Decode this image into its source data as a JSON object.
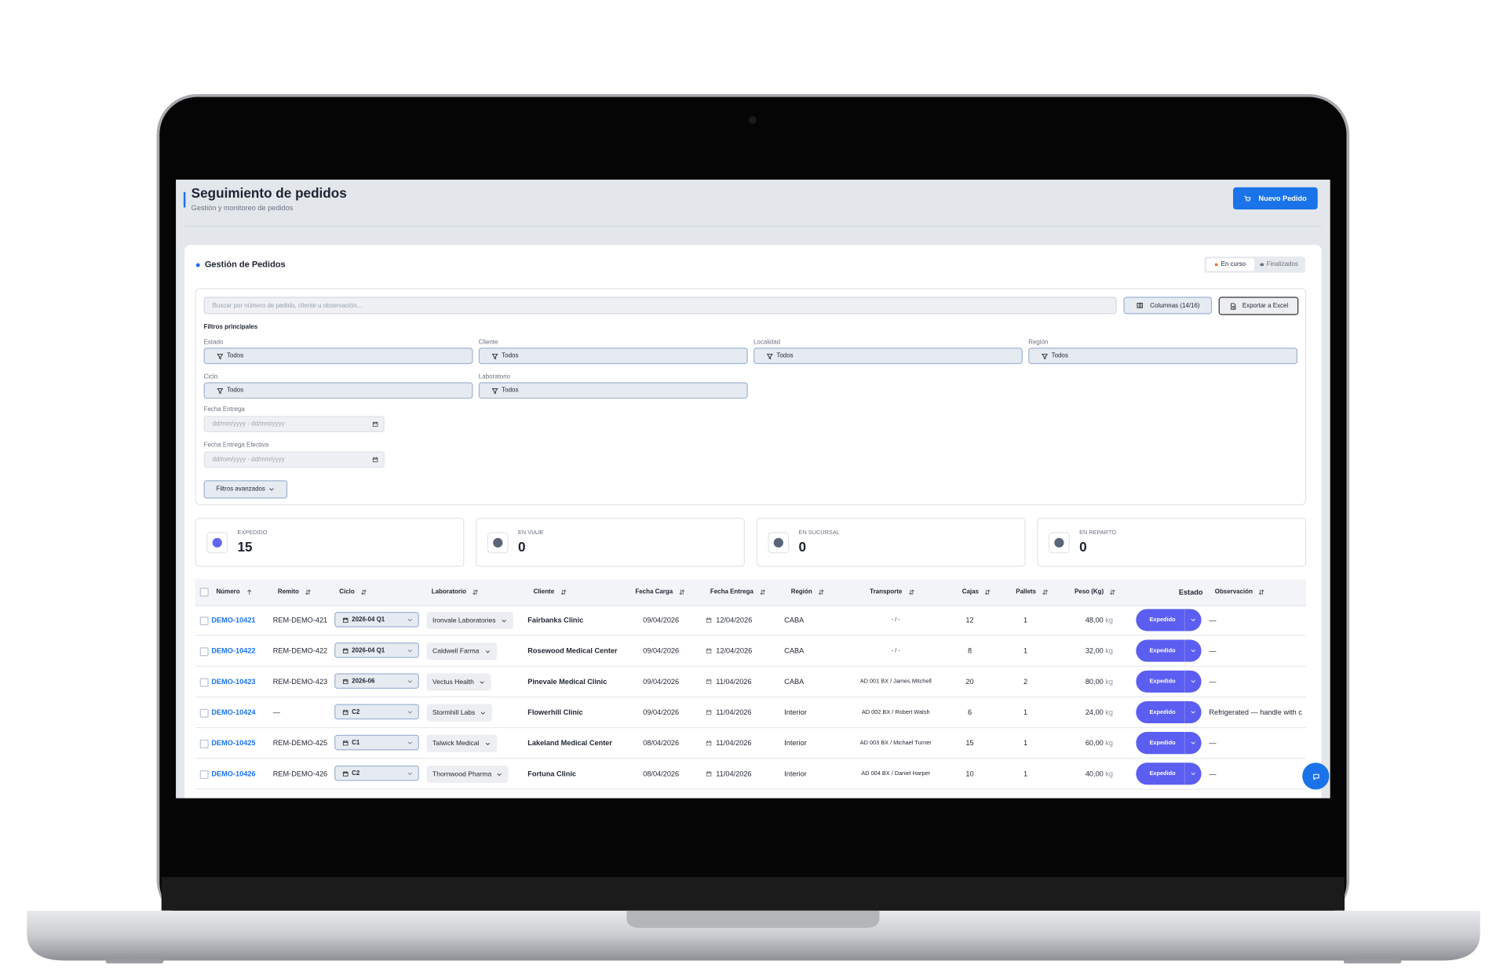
{
  "header": {
    "title": "Seguimiento de pedidos",
    "subtitle": "Gestión y monitoreo de pedidos",
    "new_button": "Nuevo Pedido"
  },
  "panel": {
    "title": "Gestión de Pedidos",
    "tabs": [
      "En curso",
      "Finalizados"
    ]
  },
  "toolbar": {
    "search_placeholder": "Buscar por número de pedido, cliente u observación...",
    "columns_button": "Columnas (14/16)",
    "export_button": "Exportar a Excel"
  },
  "filters": {
    "title": "Filtros principales",
    "selects": [
      {
        "label": "Estado",
        "value": "Todos"
      },
      {
        "label": "Cliente",
        "value": "Todos"
      },
      {
        "label": "Localidad",
        "value": "Todos"
      },
      {
        "label": "Región",
        "value": "Todos"
      },
      {
        "label": "Ciclo",
        "value": "Todos"
      },
      {
        "label": "Laboratorio",
        "value": "Todos"
      }
    ],
    "dates": [
      {
        "label": "Fecha Entrega",
        "placeholder": "dd/mm/yyyy - dd/mm/yyyy"
      },
      {
        "label": "Fecha Entrega Efectiva",
        "placeholder": "dd/mm/yyyy - dd/mm/yyyy"
      }
    ],
    "advanced_button": "Filtros avanzados"
  },
  "stats": [
    {
      "label": "EXPEDIDO",
      "value": 15,
      "color": "#6366f1"
    },
    {
      "label": "EN VIAJE",
      "value": 0,
      "color": "#5b6478"
    },
    {
      "label": "EN SUCURSAL",
      "value": 0,
      "color": "#5b6478"
    },
    {
      "label": "EN REPARTO",
      "value": 0,
      "color": "#5b6478"
    }
  ],
  "table": {
    "columns": [
      "Número",
      "Remito",
      "Ciclo",
      "Laboratorio",
      "Cliente",
      "Fecha Carga",
      "Fecha Entrega",
      "Región",
      "Transporte",
      "Cajas",
      "Pallets",
      "Peso (Kg)",
      "Estado",
      "Observación"
    ],
    "weight_unit": "kg",
    "rows": [
      [
        "DEMO-10421",
        "REM-DEMO-421",
        "2026-04 Q1",
        "Ironvale Laboratories",
        "Fairbanks Clinic",
        "09/04/2026",
        "12/04/2026",
        "CABA",
        "- / -",
        12,
        1,
        "48,00",
        "Expedido",
        "—"
      ],
      [
        "DEMO-10422",
        "REM-DEMO-422",
        "2026-04 Q1",
        "Caldwell Farma",
        "Rosewood Medical Center",
        "09/04/2026",
        "12/04/2026",
        "CABA",
        "- / -",
        8,
        1,
        "32,00",
        "Expedido",
        "—"
      ],
      [
        "DEMO-10423",
        "REM-DEMO-423",
        "2026-06",
        "Vectus Health",
        "Pinevale Medical Clinic",
        "09/04/2026",
        "11/04/2026",
        "CABA",
        "AD 001 BX / James Mitchell",
        20,
        2,
        "80,00",
        "Expedido",
        "—"
      ],
      [
        "DEMO-10424",
        "—",
        "C2",
        "Stormhill Labs",
        "Flowerhill Clinic",
        "09/04/2026",
        "11/04/2026",
        "Interior",
        "AD 002 BX / Robert Walsh",
        6,
        1,
        "24,00",
        "Expedido",
        "Refrigerated — handle with c"
      ],
      [
        "DEMO-10425",
        "REM-DEMO-425",
        "C1",
        "Talwick Medical",
        "Lakeland Medical Center",
        "08/04/2026",
        "11/04/2026",
        "Interior",
        "AD 003 BX / Michael Turner",
        15,
        1,
        "60,00",
        "Expedido",
        "—"
      ],
      [
        "DEMO-10426",
        "REM-DEMO-426",
        "C2",
        "Thornwood Pharma",
        "Fortuna Clinic",
        "08/04/2026",
        "11/04/2026",
        "Interior",
        "AD 004 BX / Daniel Harper",
        10,
        1,
        "40,00",
        "Expedido",
        "—"
      ]
    ]
  }
}
